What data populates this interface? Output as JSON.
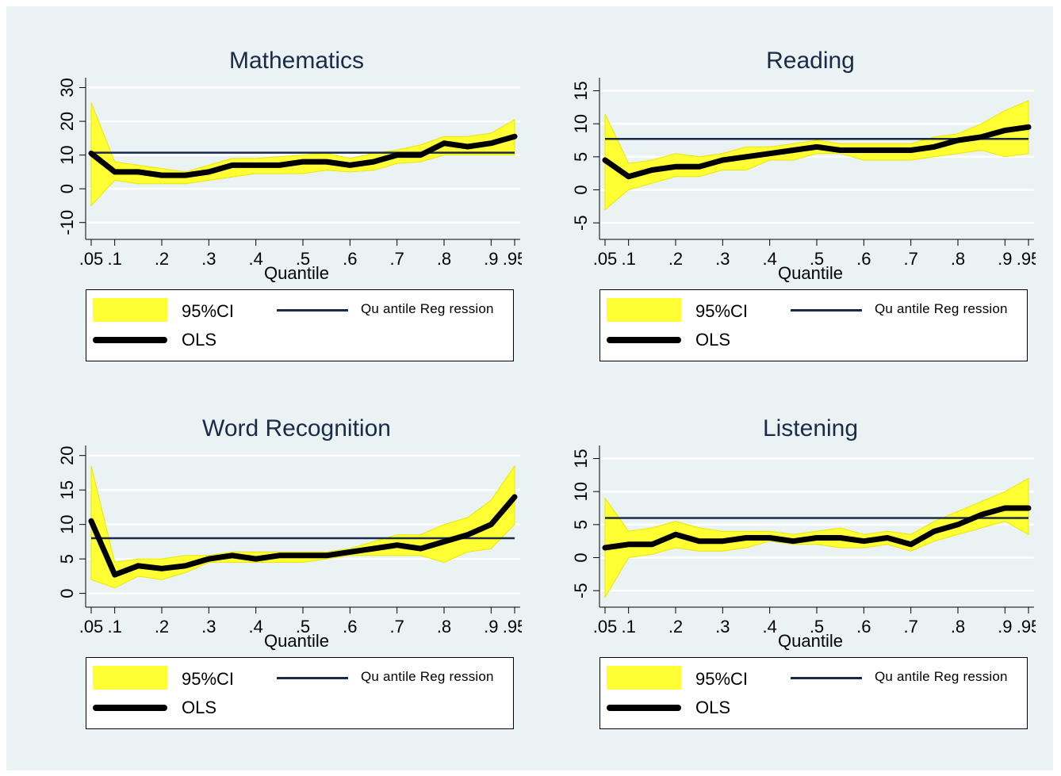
{
  "chart_data": [
    {
      "type": "line",
      "title": "Mathematics",
      "xlabel": "Quantile",
      "ylabel": "",
      "xlim": [
        0.05,
        0.95
      ],
      "ylim": [
        -15,
        32
      ],
      "xticks": [
        ".05",
        ".1",
        ".2",
        ".3",
        ".4",
        ".5",
        ".6",
        ".7",
        ".8",
        ".9",
        ".95"
      ],
      "yticks": [
        "-10",
        "0",
        "10",
        "20",
        "30"
      ],
      "x": [
        0.05,
        0.1,
        0.15,
        0.2,
        0.25,
        0.3,
        0.35,
        0.4,
        0.45,
        0.5,
        0.55,
        0.6,
        0.65,
        0.7,
        0.75,
        0.8,
        0.85,
        0.9,
        0.95
      ],
      "series": [
        {
          "name": "OLS",
          "values": [
            10.5,
            5,
            5,
            4,
            4,
            5,
            7,
            7,
            7,
            8,
            8,
            7,
            8,
            10,
            10,
            13.5,
            12.5,
            13.5,
            15.5
          ]
        },
        {
          "name": "95%CI",
          "lower": [
            -5,
            2.5,
            1.5,
            1.5,
            1.5,
            2.5,
            3.5,
            4.5,
            4.5,
            4.5,
            5.5,
            5,
            5.5,
            7.5,
            8,
            10,
            10,
            10,
            10
          ],
          "upper": [
            25.5,
            8,
            7,
            6,
            5,
            7,
            9,
            9,
            9.5,
            10,
            10.5,
            9,
            10.5,
            11.5,
            13,
            15.5,
            15.5,
            16.5,
            20.5
          ]
        },
        {
          "name": "Quantile Regression",
          "values": [
            10.7,
            10.7,
            10.7,
            10.7,
            10.7,
            10.7,
            10.7,
            10.7,
            10.7,
            10.7,
            10.7,
            10.7,
            10.7,
            10.7,
            10.7,
            10.7,
            10.7,
            10.7,
            10.7
          ]
        }
      ],
      "legend": {
        "ci": "95%CI",
        "qr": "Qu antile Reg ression",
        "ols": "OLS"
      },
      "legend_position": "bottom"
    },
    {
      "type": "line",
      "title": "Reading",
      "xlabel": "Quantile",
      "ylabel": "",
      "xlim": [
        0.05,
        0.95
      ],
      "ylim": [
        -7.5,
        16.5
      ],
      "xticks": [
        ".05",
        ".1",
        ".2",
        ".3",
        ".4",
        ".5",
        ".6",
        ".7",
        ".8",
        ".9",
        ".95"
      ],
      "yticks": [
        "-5",
        "0",
        "5",
        "10",
        "15"
      ],
      "x": [
        0.05,
        0.1,
        0.15,
        0.2,
        0.25,
        0.3,
        0.35,
        0.4,
        0.45,
        0.5,
        0.55,
        0.6,
        0.65,
        0.7,
        0.75,
        0.8,
        0.85,
        0.9,
        0.95
      ],
      "series": [
        {
          "name": "OLS",
          "values": [
            4.5,
            2,
            3,
            3.5,
            3.5,
            4.5,
            5,
            5.5,
            6,
            6.5,
            6,
            6,
            6,
            6,
            6.5,
            7.5,
            8,
            9,
            9.5
          ]
        },
        {
          "name": "95%CI",
          "lower": [
            -3,
            0,
            1,
            2,
            2,
            3,
            3,
            4.5,
            4.5,
            5.5,
            5.5,
            4.5,
            4.5,
            4.5,
            5,
            5.5,
            6,
            5,
            5.5
          ]
        },
        {
          "name": "Quantile Regression",
          "values": [
            7.7,
            7.7,
            7.7,
            7.7,
            7.7,
            7.7,
            7.7,
            7.7,
            7.7,
            7.7,
            7.7,
            7.7,
            7.7,
            7.7,
            7.7,
            7.7,
            7.7,
            7.7,
            7.7
          ]
        }
      ],
      "ci_upper": [
        11.5,
        4,
        4.5,
        5.5,
        5,
        5.5,
        6.5,
        6.5,
        7,
        7.5,
        7,
        7,
        7,
        7,
        8,
        8.5,
        10,
        12,
        13.5
      ],
      "legend": {
        "ci": "95%CI",
        "qr": "Qu antile Reg ression",
        "ols": "OLS"
      },
      "legend_position": "bottom"
    },
    {
      "type": "line",
      "title": "Word Recognition",
      "xlabel": "Quantile",
      "ylabel": "",
      "xlim": [
        0.05,
        0.95
      ],
      "ylim": [
        -2,
        21
      ],
      "xticks": [
        ".05",
        ".1",
        ".2",
        ".3",
        ".4",
        ".5",
        ".6",
        ".7",
        ".8",
        ".9",
        ".95"
      ],
      "yticks": [
        "0",
        "5",
        "10",
        "15",
        "20"
      ],
      "x": [
        0.05,
        0.1,
        0.15,
        0.2,
        0.25,
        0.3,
        0.35,
        0.4,
        0.45,
        0.5,
        0.55,
        0.6,
        0.65,
        0.7,
        0.75,
        0.8,
        0.85,
        0.9,
        0.95
      ],
      "series": [
        {
          "name": "OLS",
          "values": [
            10.5,
            2.7,
            4,
            3.6,
            4,
            5,
            5.5,
            5,
            5.5,
            5.5,
            5.5,
            6,
            6.5,
            7,
            6.5,
            7.5,
            8.5,
            10,
            14
          ]
        },
        {
          "name": "95%CI",
          "lower": [
            2,
            0.8,
            2.5,
            2,
            3,
            4.5,
            4.5,
            4.5,
            4.5,
            4.5,
            5,
            5.5,
            5.5,
            5.5,
            5.5,
            4.5,
            6,
            6.5,
            10
          ],
          "upper": [
            18.5,
            4.5,
            5,
            5,
            5.5,
            5.5,
            6,
            6,
            6,
            6,
            6,
            6.5,
            7.5,
            8.5,
            8.5,
            10,
            11,
            13.5,
            18.5
          ]
        },
        {
          "name": "Quantile Regression",
          "values": [
            8,
            8,
            8,
            8,
            8,
            8,
            8,
            8,
            8,
            8,
            8,
            8,
            8,
            8,
            8,
            8,
            8,
            8,
            8
          ]
        }
      ],
      "legend": {
        "ci": "95%CI",
        "qr": "Qu antile Reg ression",
        "ols": "OLS"
      },
      "legend_position": "bottom"
    },
    {
      "type": "line",
      "title": "Listening",
      "xlabel": "Quantile",
      "ylabel": "",
      "xlim": [
        0.05,
        0.95
      ],
      "ylim": [
        -7.5,
        16.5
      ],
      "xticks": [
        ".05",
        ".1",
        ".2",
        ".3",
        ".4",
        ".5",
        ".6",
        ".7",
        ".8",
        ".9",
        ".95"
      ],
      "yticks": [
        "-5",
        "0",
        "5",
        "10",
        "15"
      ],
      "x": [
        0.05,
        0.1,
        0.15,
        0.2,
        0.25,
        0.3,
        0.35,
        0.4,
        0.45,
        0.5,
        0.55,
        0.6,
        0.65,
        0.7,
        0.75,
        0.8,
        0.85,
        0.9,
        0.95
      ],
      "series": [
        {
          "name": "OLS",
          "values": [
            1.5,
            2,
            2,
            3.5,
            2.5,
            2.5,
            3,
            3,
            2.5,
            3,
            3,
            2.5,
            3,
            2,
            4,
            5,
            6.5,
            7.5,
            7.5
          ]
        },
        {
          "name": "95%CI",
          "lower": [
            -6,
            0,
            0.5,
            1.5,
            1,
            1,
            1.5,
            2.5,
            2,
            2,
            1.5,
            1.5,
            2,
            1,
            2.5,
            3.5,
            4.5,
            5.5,
            3.5
          ],
          "upper": [
            9,
            4,
            4.5,
            5.5,
            4.5,
            4,
            4,
            4,
            3.5,
            4,
            4.5,
            3.5,
            4,
            3.5,
            5.5,
            7,
            8.5,
            10,
            12
          ]
        },
        {
          "name": "Quantile Regression",
          "values": [
            6,
            6,
            6,
            6,
            6,
            6,
            6,
            6,
            6,
            6,
            6,
            6,
            6,
            6,
            6,
            6,
            6,
            6,
            6
          ]
        }
      ],
      "legend": {
        "ci": "95%CI",
        "qr": "Qu antile Reg ression",
        "ols": "OLS"
      },
      "legend_position": "bottom"
    }
  ],
  "colors": {
    "ci_fill": "#ffff33",
    "ci_edge": "#e8e800",
    "ols": "#000000",
    "qr": "#1a2b4a",
    "background": "#eaf2f3",
    "gridline": "#ffffff",
    "title": "#1a2b4a"
  }
}
